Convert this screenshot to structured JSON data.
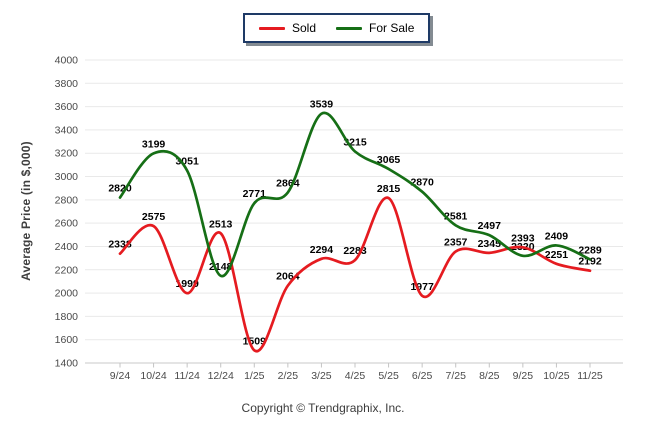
{
  "chart_data": {
    "type": "line",
    "title": "",
    "xlabel": "",
    "ylabel": "Average Price (in $,000)",
    "categories": [
      "9/24",
      "10/24",
      "11/24",
      "12/24",
      "1/25",
      "2/25",
      "3/25",
      "4/25",
      "5/25",
      "6/25",
      "7/25",
      "8/25",
      "9/25",
      "10/25",
      "11/25"
    ],
    "series": [
      {
        "name": "Sold",
        "color": "#e51b20",
        "values": [
          2338,
          2575,
          1999,
          2513,
          1509,
          2064,
          2294,
          2283,
          2815,
          1977,
          2357,
          2345,
          2393,
          2251,
          2192
        ]
      },
      {
        "name": "For Sale",
        "color": "#166f16",
        "values": [
          2820,
          3199,
          3051,
          2148,
          2771,
          2864,
          3539,
          3215,
          3065,
          2870,
          2581,
          2497,
          2320,
          2409,
          2289
        ]
      }
    ],
    "ylim": [
      1400,
      4000
    ],
    "ytick_step": 200,
    "grid": true,
    "data_labels": true,
    "legend_position": "top-center",
    "styles": {
      "grid_color": "#e9e9e9",
      "axis_line_color": "#c9c9c9",
      "tick_color": "#c4c4c4",
      "axis_text_color": "#4a4a4a",
      "data_label_color": "#000000"
    }
  },
  "legend": {
    "items": [
      {
        "label": "Sold"
      },
      {
        "label": "For Sale"
      }
    ]
  },
  "footer": {
    "copyright": "Copyright © Trendgraphix, Inc."
  }
}
